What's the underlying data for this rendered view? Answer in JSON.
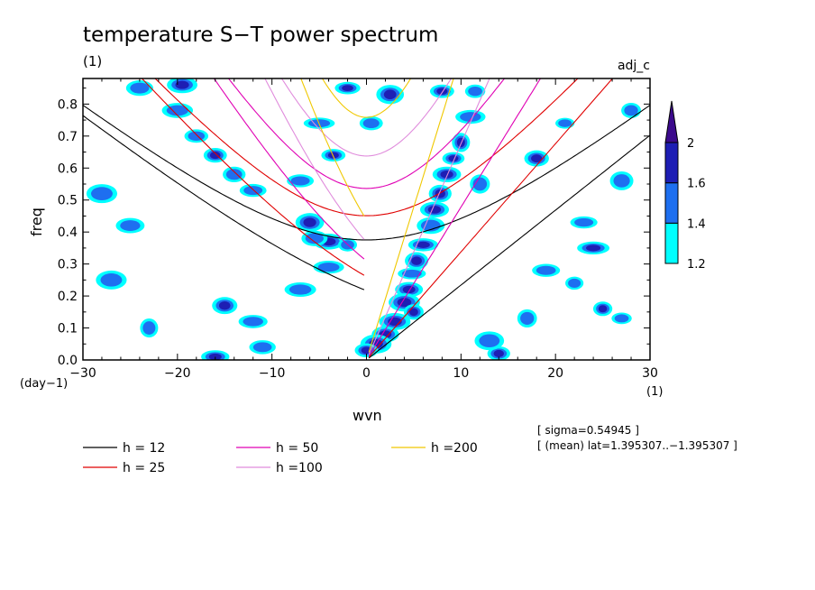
{
  "chart_data": {
    "type": "heatmap",
    "title": "temperature S−T power spectrum",
    "subtitle_left": "(1)",
    "subtitle_right": "adj_c",
    "xlabel": "wvn",
    "ylabel": "freq",
    "x_unit": "(1)",
    "y_unit": "(day−1)",
    "xlim": [
      -30,
      30
    ],
    "ylim": [
      0,
      0.88
    ],
    "x_ticks": [
      -30,
      -20,
      -10,
      0,
      10,
      20,
      30
    ],
    "x_tick_labels": [
      "−30",
      "−20",
      "−10",
      "0",
      "10",
      "20",
      "30"
    ],
    "y_ticks": [
      0,
      0.1,
      0.2,
      0.3,
      0.4,
      0.5,
      0.6,
      0.7,
      0.8
    ],
    "y_tick_labels": [
      "0.0",
      "0.1",
      "0.2",
      "0.3",
      "0.4",
      "0.5",
      "0.6",
      "0.7",
      "0.8"
    ],
    "colorbar": {
      "levels": [
        1.2,
        1.4,
        1.6,
        2
      ],
      "labels": [
        "1.2",
        "1.4",
        "1.6",
        "2"
      ],
      "colors": [
        "#00ffff",
        "#1e6ff0",
        "#1e1eb4",
        "#3c0a8c"
      ]
    },
    "dispersion_curves": [
      {
        "label": "h = 12",
        "h": 12,
        "color": "#000000"
      },
      {
        "label": "h = 25",
        "h": 25,
        "color": "#e00000"
      },
      {
        "label": "h = 50",
        "h": 50,
        "color": "#e000b4"
      },
      {
        "label": "h =100",
        "h": 100,
        "color": "#e08cdc"
      },
      {
        "label": "h =200",
        "h": 200,
        "color": "#f0c800"
      }
    ],
    "blobs": [
      {
        "x": 10.0,
        "y": 0.68,
        "level": 3
      },
      {
        "x": 9.2,
        "y": 0.63,
        "level": 3
      },
      {
        "x": 8.5,
        "y": 0.58,
        "level": 3
      },
      {
        "x": 7.8,
        "y": 0.52,
        "level": 3
      },
      {
        "x": 7.2,
        "y": 0.47,
        "level": 3
      },
      {
        "x": 6.8,
        "y": 0.42,
        "level": 2
      },
      {
        "x": 6.0,
        "y": 0.36,
        "level": 3
      },
      {
        "x": 5.3,
        "y": 0.31,
        "level": 3
      },
      {
        "x": 4.8,
        "y": 0.27,
        "level": 2
      },
      {
        "x": 4.5,
        "y": 0.22,
        "level": 3
      },
      {
        "x": 4.0,
        "y": 0.18,
        "level": 3
      },
      {
        "x": 5.0,
        "y": 0.15,
        "level": 3
      },
      {
        "x": 3.0,
        "y": 0.12,
        "level": 3
      },
      {
        "x": 2.0,
        "y": 0.08,
        "level": 3
      },
      {
        "x": 1.0,
        "y": 0.05,
        "level": 3
      },
      {
        "x": 0.0,
        "y": 0.03,
        "level": 3
      },
      {
        "x": 11.0,
        "y": 0.76,
        "level": 2
      },
      {
        "x": 11.5,
        "y": 0.84,
        "level": 2
      },
      {
        "x": 8.0,
        "y": 0.84,
        "level": 3
      },
      {
        "x": -4.0,
        "y": 0.37,
        "level": 3
      },
      {
        "x": -6.0,
        "y": 0.43,
        "level": 3
      },
      {
        "x": -2.0,
        "y": 0.36,
        "level": 2
      },
      {
        "x": -5.5,
        "y": 0.38,
        "level": 2
      },
      {
        "x": -3.5,
        "y": 0.64,
        "level": 3
      },
      {
        "x": -5.0,
        "y": 0.74,
        "level": 2
      },
      {
        "x": 0.5,
        "y": 0.74,
        "level": 2
      },
      {
        "x": 2.5,
        "y": 0.83,
        "level": 3
      },
      {
        "x": -2.0,
        "y": 0.85,
        "level": 3
      },
      {
        "x": -18.0,
        "y": 0.7,
        "level": 2
      },
      {
        "x": -16.0,
        "y": 0.64,
        "level": 3
      },
      {
        "x": -14.0,
        "y": 0.58,
        "level": 2
      },
      {
        "x": -12.0,
        "y": 0.53,
        "level": 2
      },
      {
        "x": -20.0,
        "y": 0.78,
        "level": 2
      },
      {
        "x": -19.5,
        "y": 0.86,
        "level": 3
      },
      {
        "x": -24.0,
        "y": 0.85,
        "level": 2
      },
      {
        "x": -15.0,
        "y": 0.17,
        "level": 3
      },
      {
        "x": -7.0,
        "y": 0.22,
        "level": 2
      },
      {
        "x": -16.0,
        "y": 0.01,
        "level": 3
      },
      {
        "x": -11.0,
        "y": 0.04,
        "level": 2
      },
      {
        "x": 14.0,
        "y": 0.02,
        "level": 3
      },
      {
        "x": 13.0,
        "y": 0.06,
        "level": 2
      },
      {
        "x": 17.0,
        "y": 0.13,
        "level": 2
      },
      {
        "x": 25.0,
        "y": 0.16,
        "level": 3
      },
      {
        "x": 27.0,
        "y": 0.13,
        "level": 2
      },
      {
        "x": 24.0,
        "y": 0.35,
        "level": 3
      },
      {
        "x": 23.0,
        "y": 0.43,
        "level": 2
      },
      {
        "x": 18.0,
        "y": 0.63,
        "level": 3
      },
      {
        "x": 12.0,
        "y": 0.55,
        "level": 2
      },
      {
        "x": -27.0,
        "y": 0.25,
        "level": 2
      },
      {
        "x": -28.0,
        "y": 0.52,
        "level": 2
      },
      {
        "x": -12.0,
        "y": 0.12,
        "level": 2
      },
      {
        "x": 22.0,
        "y": 0.24,
        "level": 2
      },
      {
        "x": 21.0,
        "y": 0.74,
        "level": 2
      },
      {
        "x": -7.0,
        "y": 0.56,
        "level": 2
      },
      {
        "x": -25.0,
        "y": 0.42,
        "level": 2
      },
      {
        "x": 19.0,
        "y": 0.28,
        "level": 2
      },
      {
        "x": -4.0,
        "y": 0.29,
        "level": 2
      },
      {
        "x": 27.0,
        "y": 0.56,
        "level": 2
      },
      {
        "x": 28.0,
        "y": 0.78,
        "level": 2
      },
      {
        "x": -23.0,
        "y": 0.1,
        "level": 2
      }
    ]
  },
  "annotations": {
    "sigma": "[ sigma=0.54945 ]",
    "mean": "[ (mean) lat=1.395307..−1.395307 ]"
  }
}
